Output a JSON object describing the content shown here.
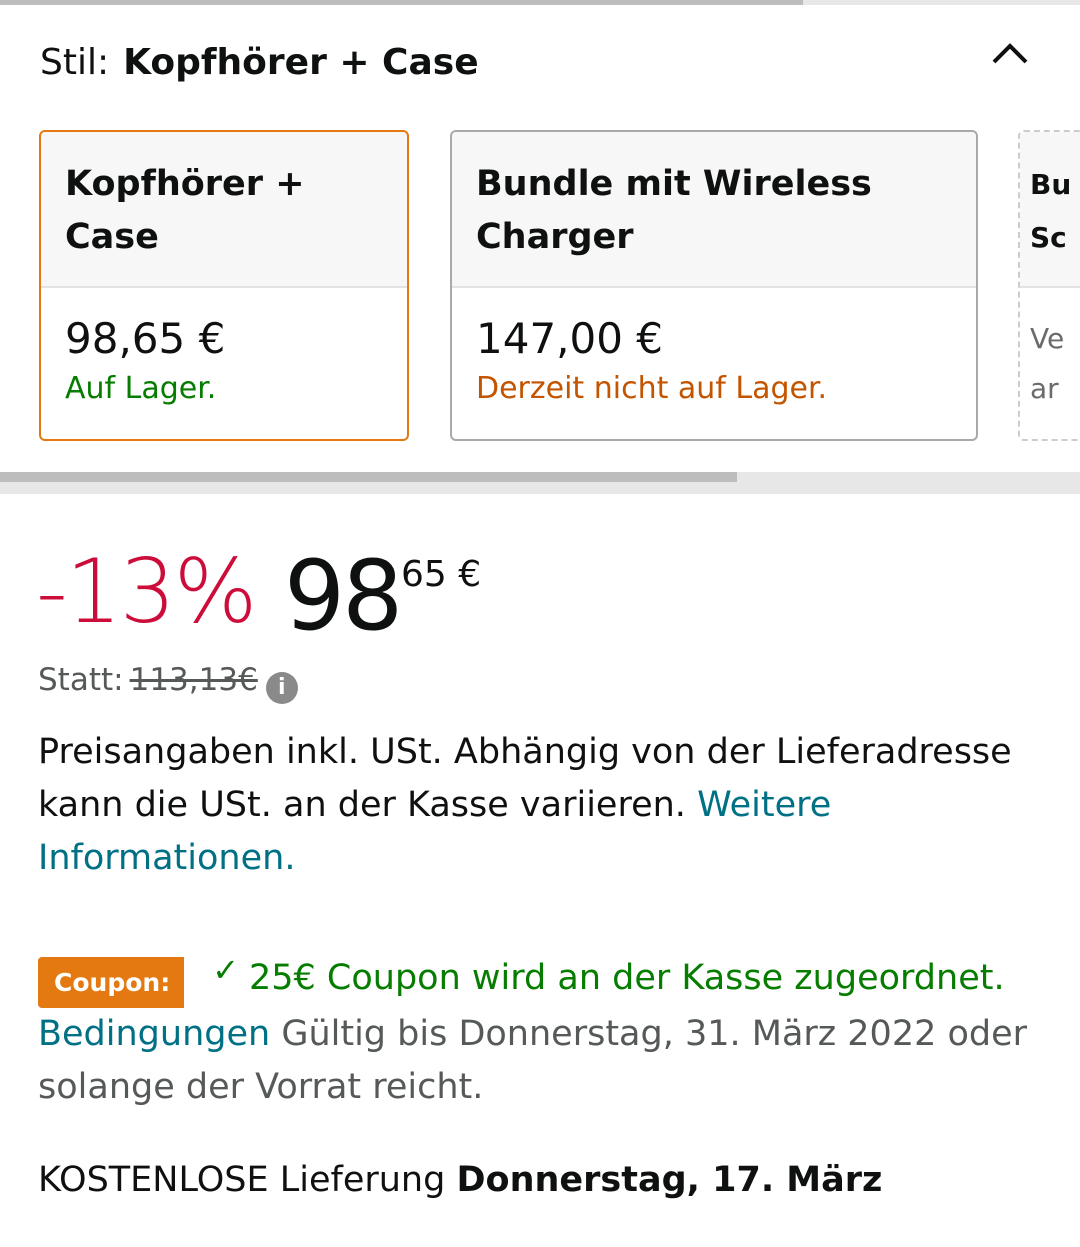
{
  "style_selector": {
    "label": "Stil:",
    "selected": "Kopfhörer + Case"
  },
  "options": [
    {
      "title": "Kopfhörer + Case",
      "price": "98,65 €",
      "stock": "Auf Lager.",
      "selected": true
    },
    {
      "title": "Bundle mit Wireless Charger",
      "price": "147,00 €",
      "stock": "Derzeit nicht auf Lager."
    },
    {
      "title": "Bu Sc",
      "body": "Ve ar"
    }
  ],
  "price": {
    "discount": "-13%",
    "whole": "98",
    "fraction": "65 €",
    "was_label": "Statt:",
    "was_price": "113,13€"
  },
  "tax_note": {
    "text": "Preisangaben inkl. USt. Abhängig von der Lieferadresse kann die USt. an der Kasse variieren.",
    "link": "Weitere Informationen."
  },
  "coupon": {
    "badge": "Coupon:",
    "text": "25€ Coupon wird an der Kasse zugeordnet.",
    "terms_link": "Bedingungen",
    "validity": "Gültig bis Donnerstag, 31. März 2022 oder solange der Vorrat reicht."
  },
  "delivery": {
    "label": "KOSTENLOSE Lieferung",
    "date": "Donnerstag, 17. März"
  },
  "colors": {
    "accent": "#e47911",
    "discount": "#cc0c39",
    "in_stock": "#067d00",
    "out_of_stock": "#c45500",
    "link": "#007185"
  }
}
